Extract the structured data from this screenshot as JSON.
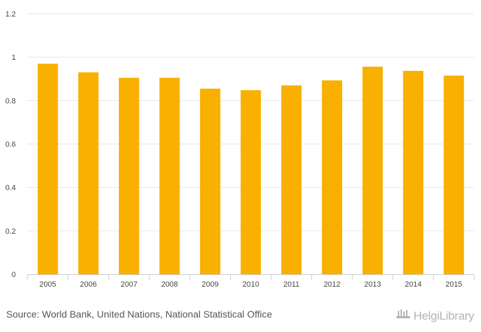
{
  "chart_data": {
    "type": "bar",
    "title": "",
    "xlabel": "",
    "ylabel": "",
    "categories": [
      "2005",
      "2006",
      "2007",
      "2008",
      "2009",
      "2010",
      "2011",
      "2012",
      "2013",
      "2014",
      "2015"
    ],
    "values": [
      0.97,
      0.93,
      0.905,
      0.905,
      0.855,
      0.848,
      0.87,
      0.893,
      0.956,
      0.937,
      0.915
    ],
    "ylim": [
      0,
      1.2
    ],
    "yticks": [
      "0",
      "0.2",
      "0.4",
      "0.6",
      "0.8",
      "1",
      "1.2"
    ],
    "grid": true,
    "bar_color": "#f9b000"
  },
  "footer": {
    "source": "Source: World Bank, United Nations, National Statistical Office",
    "brand": "HelgiLibrary"
  },
  "colors": {
    "grid": "#e6e6e6",
    "axis": "#cccccc"
  }
}
